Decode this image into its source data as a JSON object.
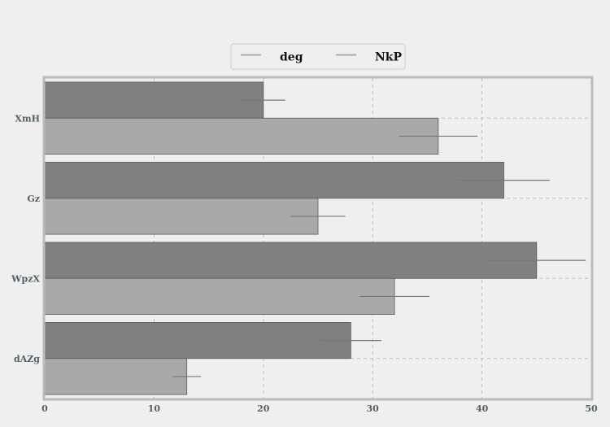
{
  "chart_data": {
    "type": "bar",
    "orientation": "horizontal",
    "categories": [
      "XmH",
      "Gz",
      "WpzX",
      "dAZg"
    ],
    "series": [
      {
        "name": "deg",
        "values": [
          20,
          42,
          45,
          28
        ],
        "errors": [
          2,
          4.2,
          4.5,
          2.8
        ],
        "color": "#808080"
      },
      {
        "name": "NkP",
        "values": [
          36,
          25,
          32,
          13
        ],
        "errors": [
          3.6,
          2.5,
          3.2,
          1.3
        ],
        "color": "#a9a9a9"
      }
    ],
    "xlim": [
      0,
      50
    ],
    "xticks": [
      "0",
      "10",
      "20",
      "30",
      "40",
      "50"
    ],
    "grid": true,
    "legend_position": "top-center",
    "colors": {
      "background": "#efefef",
      "frame": "#bbbbbb",
      "grid": "#bdbdbd",
      "errorbar": "#777777"
    }
  }
}
